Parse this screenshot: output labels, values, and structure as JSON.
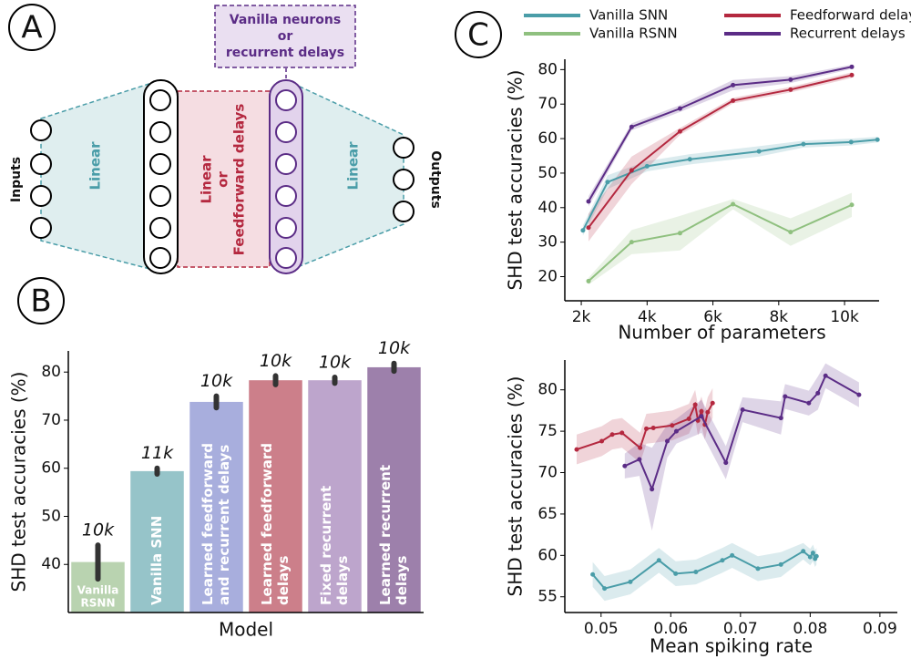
{
  "panel_labels": [
    "A",
    "B",
    "C"
  ],
  "diagram": {
    "top_box": [
      "Vanilla neurons",
      "or",
      "recurrent delays"
    ],
    "inputs": "Inputs",
    "linear_left": "Linear",
    "middle": [
      "Linear",
      "or",
      "Feedforward delays"
    ],
    "linear_right": "Linear",
    "outputs": "Outputs"
  },
  "chart_data": [
    {
      "type": "bar",
      "xlabel": "Model",
      "ylabel": "SHD test accuracies (%)",
      "categories": [
        [
          "Vanilla",
          "RSNN"
        ],
        [
          "Vanilla SNN"
        ],
        [
          "Learned feedforward",
          "and recurrent delays"
        ],
        [
          "Learned feedforward",
          "delays"
        ],
        [
          "Fixed recurrent",
          "delays"
        ],
        [
          "Learned recurrent",
          "delays"
        ]
      ],
      "values": [
        40.5,
        59.4,
        73.8,
        78.3,
        78.3,
        81.0
      ],
      "errors": [
        3.5,
        0.6,
        1.2,
        0.9,
        0.6,
        0.8
      ],
      "annotations": [
        "10k",
        "11k",
        "10k",
        "10k",
        "10k",
        "10k"
      ],
      "colors": [
        "#b9d3b0",
        "#96c4c9",
        "#a8aedd",
        "#cc7f8a",
        "#bda5cc",
        "#9d80ab"
      ],
      "ylim": [
        30,
        84.4
      ],
      "yticks": [
        40,
        50,
        60,
        70,
        80
      ]
    },
    {
      "type": "line",
      "xlabel": "Number of parameters",
      "ylabel": "SHD test accuracies (%)",
      "xlim": [
        1500,
        11050
      ],
      "xticks": [
        {
          "value": 2000,
          "label": "2k"
        },
        {
          "value": 4000,
          "label": "4k"
        },
        {
          "value": 6000,
          "label": "6k"
        },
        {
          "value": 8000,
          "label": "8k"
        },
        {
          "value": 10000,
          "label": "10k"
        }
      ],
      "ylim": [
        13,
        83
      ],
      "yticks": [
        20,
        30,
        40,
        50,
        60,
        70,
        80
      ],
      "legend": "above",
      "series": [
        {
          "name": "Vanilla SNN",
          "color": "#4a9da8",
          "x": [
            2050,
            2800,
            4000,
            5300,
            7400,
            8750,
            10200,
            11000
          ],
          "values": [
            33.4,
            47.4,
            52.0,
            54.0,
            56.3,
            58.4,
            59.0,
            59.7
          ],
          "errors": [
            1.5,
            2.0,
            1.5,
            1.5,
            1.5,
            1.0,
            1.0,
            0.8
          ]
        },
        {
          "name": "Vanilla RSNN",
          "color": "#8fc07f",
          "x": [
            2220,
            3530,
            5000,
            6610,
            8360,
            10220
          ],
          "values": [
            18.7,
            30.0,
            32.6,
            41.0,
            32.9,
            40.8
          ],
          "errors": [
            1.0,
            3.5,
            5.0,
            1.5,
            4.0,
            3.5
          ]
        },
        {
          "name": "Feedforward delays",
          "color": "#b4283f",
          "x": [
            2220,
            3530,
            5000,
            6610,
            8360,
            10220
          ],
          "values": [
            34.2,
            50.8,
            62.1,
            71.0,
            74.2,
            78.4
          ],
          "errors": [
            4.0,
            4.0,
            1.0,
            0.8,
            0.8,
            0.8
          ]
        },
        {
          "name": "Recurrent delays",
          "color": "#5b2c86",
          "x": [
            2220,
            3530,
            5000,
            6610,
            8360,
            10220
          ],
          "values": [
            41.8,
            63.4,
            68.7,
            75.5,
            77.1,
            80.8
          ],
          "errors": [
            1.5,
            1.0,
            1.0,
            1.5,
            1.0,
            0.6
          ]
        }
      ]
    },
    {
      "type": "line",
      "xlabel": "Mean spiking rate",
      "ylabel": "SHD test accuracies (%)",
      "xlim": [
        0.0448,
        0.0925
      ],
      "xticks": [
        0.05,
        0.06,
        0.07,
        0.08,
        0.09
      ],
      "ylim": [
        53.1,
        83.6
      ],
      "yticks": [
        55,
        60,
        65,
        70,
        75,
        80
      ],
      "series": [
        {
          "color": "#4a9da8",
          "x": [
            0.0488,
            0.0505,
            0.0542,
            0.0583,
            0.0607,
            0.0636,
            0.0674,
            0.0688,
            0.0725,
            0.0758,
            0.079,
            0.08,
            0.0804,
            0.0807,
            0.0809
          ],
          "values": [
            57.7,
            56.0,
            56.8,
            59.4,
            57.8,
            58.0,
            59.4,
            60.0,
            58.4,
            58.9,
            60.5,
            59.8,
            60.3,
            59.6,
            59.9
          ],
          "errors": [
            1.5,
            1.5,
            1.5,
            1.5,
            1.5,
            1.5,
            1.5,
            1.5,
            1.5,
            1.5,
            1.0,
            1.0,
            1.0,
            1.0,
            1.0
          ]
        },
        {
          "color": "#b4283f",
          "x": [
            0.0465,
            0.0501,
            0.0516,
            0.053,
            0.0556,
            0.0565,
            0.0575,
            0.0602,
            0.0626,
            0.0635,
            0.0639,
            0.0644,
            0.0649,
            0.0653,
            0.066
          ],
          "values": [
            72.8,
            73.8,
            74.6,
            74.8,
            73.0,
            75.3,
            75.4,
            75.7,
            76.5,
            78.2,
            76.3,
            77.4,
            75.8,
            77.3,
            78.4
          ],
          "errors": [
            1.8,
            1.8,
            1.8,
            1.8,
            1.8,
            1.8,
            1.8,
            1.8,
            1.8,
            1.8,
            1.8,
            1.8,
            1.8,
            1.8,
            1.8
          ]
        },
        {
          "color": "#5b2c86",
          "x": [
            0.0534,
            0.0555,
            0.0573,
            0.0595,
            0.0608,
            0.0644,
            0.0679,
            0.0703,
            0.0758,
            0.0764,
            0.0798,
            0.0811,
            0.0822,
            0.087
          ],
          "values": [
            70.8,
            71.6,
            68.0,
            73.8,
            75.0,
            76.8,
            71.2,
            77.6,
            76.6,
            79.2,
            78.4,
            79.6,
            81.7,
            79.4
          ],
          "errors": [
            1.5,
            2.0,
            5.0,
            2.0,
            1.5,
            2.0,
            2.0,
            1.5,
            2.0,
            1.5,
            1.5,
            2.0,
            1.5,
            1.5
          ]
        }
      ]
    }
  ]
}
